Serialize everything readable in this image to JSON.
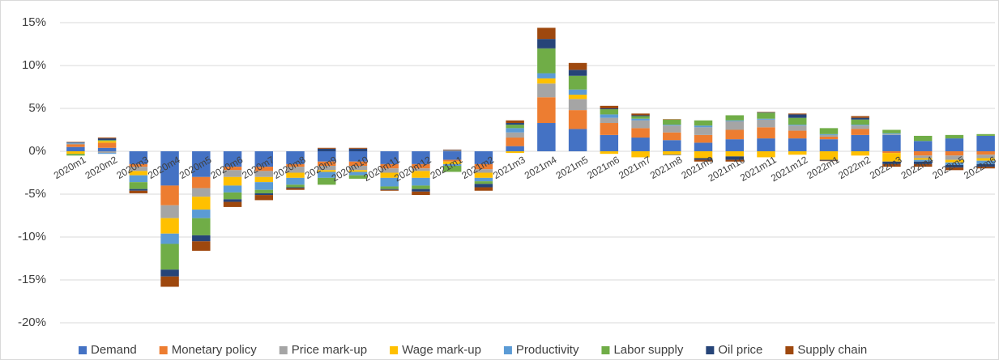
{
  "chart_data": {
    "type": "stacked-bar",
    "categories": [
      "2020m1",
      "2020m2",
      "2020m3",
      "2020m4",
      "2020m5",
      "2020m6",
      "2020m7",
      "2020m8",
      "2020m9",
      "2020m10",
      "2020m11",
      "2020m12",
      "2021m1",
      "2021m2",
      "2021m3",
      "2021m4",
      "2021m5",
      "2021m6",
      "2021m7",
      "2021m8",
      "2021m9",
      "2021m10",
      "2021m11",
      "2021m12",
      "2022m1",
      "2022m2",
      "2022m3",
      "2022m4",
      "2022m5",
      "2022m6"
    ],
    "series": [
      {
        "name": "Demand",
        "color": "#4472c4",
        "values": [
          0.5,
          0.4,
          -1.5,
          -4,
          -3,
          -1.8,
          -1.8,
          -1.5,
          -1.2,
          -1.2,
          -1.5,
          -1.5,
          -1,
          -1.5,
          0.6,
          3.3,
          2.6,
          1.9,
          1.6,
          1.3,
          1,
          1.4,
          1.5,
          1.5,
          1.4,
          1.9,
          1.9,
          1.2,
          1.5,
          1.8
        ]
      },
      {
        "name": "Monetary policy",
        "color": "#ed7d31",
        "values": [
          0.3,
          0.6,
          -0.3,
          -2.3,
          -1.3,
          -0.4,
          -0.5,
          -0.3,
          -0.5,
          -0.5,
          -0.5,
          -0.5,
          -0.2,
          -0.6,
          1,
          3,
          2.2,
          1.4,
          1.1,
          0.9,
          0.9,
          1.1,
          1.3,
          0.9,
          0.3,
          0.7,
          -0.2,
          -0.5,
          -0.5,
          -0.4
        ]
      },
      {
        "name": "Price mark-up",
        "color": "#a5a5a5",
        "values": [
          0.1,
          -0.2,
          -0.5,
          -1.5,
          -1,
          -0.8,
          -0.7,
          -0.7,
          -0.5,
          -0.5,
          -0.5,
          -0.3,
          0.1,
          -0.4,
          0.6,
          1.6,
          1.3,
          0.6,
          0.9,
          0.8,
          0.9,
          1,
          0.9,
          0.6,
          0.2,
          0.4,
          0.1,
          -0.3,
          -0.5,
          -0.4
        ]
      },
      {
        "name": "Wage mark-up",
        "color": "#ffc000",
        "values": [
          -0.3,
          0.2,
          -0.5,
          -1.8,
          -1.5,
          -1,
          -0.6,
          -0.6,
          -0.2,
          -0.2,
          -0.6,
          -0.8,
          -0.3,
          -0.6,
          -0.2,
          0.6,
          0.5,
          -0.3,
          -0.7,
          -0.4,
          -0.8,
          -0.6,
          -0.7,
          -0.4,
          -1,
          -0.5,
          -1,
          -0.2,
          -0.3,
          -0.3
        ]
      },
      {
        "name": "Productivity",
        "color": "#5b9bd5",
        "values": [
          0.1,
          -0.1,
          -0.8,
          -1.2,
          -1,
          -0.8,
          -0.9,
          -0.8,
          -0.7,
          -0.4,
          -1,
          -0.9,
          -0.2,
          -0.4,
          0.5,
          0.6,
          0.6,
          0.4,
          0.2,
          0.1,
          0.2,
          0.1,
          0.1,
          0.1,
          0.1,
          0.1,
          0.1,
          -0.2,
          -0.3,
          -0.4
        ]
      },
      {
        "name": "Labor supply",
        "color": "#70ad47",
        "values": [
          -0.2,
          0.1,
          -0.8,
          -3,
          -2,
          -0.8,
          -0.4,
          -0.3,
          -0.8,
          -0.4,
          -0.3,
          -0.4,
          -0.7,
          -0.3,
          0.4,
          2.9,
          1.6,
          0.6,
          0.3,
          0.6,
          0.6,
          0.6,
          0.7,
          0.8,
          0.7,
          0.6,
          0.4,
          0.6,
          0.4,
          0.2
        ]
      },
      {
        "name": "Oil price",
        "color": "#264478",
        "values": [
          0.05,
          0.2,
          -0.2,
          -0.8,
          -0.7,
          -0.3,
          -0.2,
          -0.1,
          0.3,
          0.3,
          -0.1,
          -0.3,
          0.05,
          -0.4,
          0.2,
          1.1,
          0.7,
          0.1,
          0.1,
          -0.05,
          -0.2,
          -0.4,
          0.05,
          0.4,
          -0.1,
          0.2,
          -0.3,
          -0.3,
          -0.3,
          -0.3
        ]
      },
      {
        "name": "Supply chain",
        "color": "#9e480e",
        "values": [
          0.05,
          0.1,
          -0.3,
          -1.2,
          -1.1,
          -0.6,
          -0.6,
          -0.2,
          0.1,
          0.1,
          -0.1,
          -0.4,
          0.05,
          -0.4,
          0.3,
          1.3,
          0.8,
          0.3,
          0.2,
          0.05,
          -0.2,
          -0.2,
          0.05,
          0.1,
          -0.05,
          0.2,
          -0.3,
          -0.3,
          -0.3,
          -0.2
        ]
      }
    ],
    "ylim": [
      -20,
      15
    ],
    "yticks": [
      {
        "value": -20,
        "label": "-20%"
      },
      {
        "value": -15,
        "label": "-15%"
      },
      {
        "value": -10,
        "label": "-10%"
      },
      {
        "value": -5,
        "label": "-5%"
      },
      {
        "value": 0,
        "label": "0%"
      },
      {
        "value": 5,
        "label": "5%"
      },
      {
        "value": 10,
        "label": "10%"
      },
      {
        "value": 15,
        "label": "15%"
      }
    ],
    "grid": true,
    "legend": "bottom"
  }
}
